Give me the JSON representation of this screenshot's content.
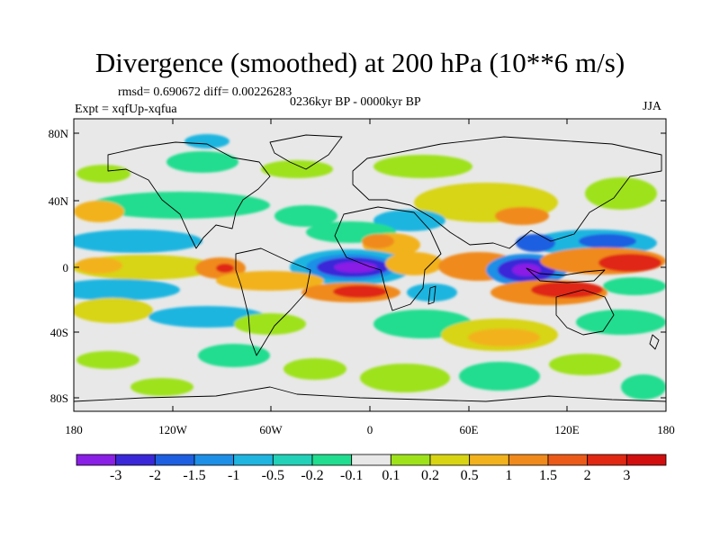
{
  "title": "Divergence (smoothed) at 200 hPa (10**6 m/s)",
  "stats_line": "rmsd= 0.690672 diff= 0.00226283",
  "period_line": "0236kyr BP - 0000kyr BP",
  "experiment_line": "Expt = xqfUp-xqfua",
  "season": "JJA",
  "map": {
    "lat_ticks": [
      "80N",
      "40N",
      "0",
      "40S",
      "80S"
    ],
    "lon_ticks": [
      "180",
      "120W",
      "60W",
      "0",
      "60E",
      "120E",
      "180"
    ]
  },
  "colorbar": {
    "labels": [
      "-3",
      "-2",
      "-1.5",
      "-1",
      "-0.5",
      "-0.2",
      "-0.1",
      "0.1",
      "0.2",
      "0.5",
      "1",
      "1.5",
      "2",
      "3"
    ],
    "colors": [
      "#8a1fe6",
      "#3a28d8",
      "#1d5fe0",
      "#1e8fe6",
      "#1fb5e0",
      "#22d1b8",
      "#21dd8f",
      "#e8e8e8",
      "#9ee21a",
      "#d8d414",
      "#f2b21e",
      "#f08a1c",
      "#eb5a18",
      "#e02812",
      "#d10f0f"
    ]
  },
  "palette": {
    "neutral": "#e8e8e8",
    "light_pos": "#9ee21a",
    "pos": "#d8d414",
    "mid_pos": "#f2b21e",
    "orange": "#f08a1c",
    "strong_pos": "#e02812",
    "light_neg": "#21dd8f",
    "neg": "#1fb5e0",
    "mid_neg": "#1e8fe6",
    "strong_neg": "#1d5fe0",
    "deep_neg": "#3a28d8",
    "extreme_neg": "#8a1fe6"
  }
}
